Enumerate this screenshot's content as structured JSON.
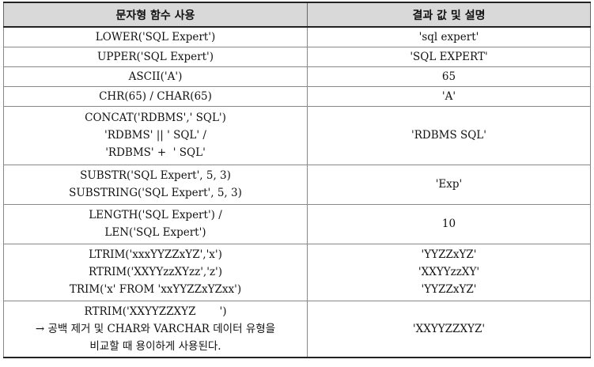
{
  "headers": [
    "문자형 함수 사용",
    "결과 값 및 설명"
  ],
  "rows": [
    {
      "func": [
        "LOWER('SQL Expert')"
      ],
      "result": [
        "'sql expert'"
      ]
    },
    {
      "func": [
        "UPPER('SQL Expert')"
      ],
      "result": [
        "'SQL EXPERT'"
      ]
    },
    {
      "func": [
        "ASCII('A')"
      ],
      "result": [
        "65"
      ]
    },
    {
      "func": [
        "CHR(65) / CHAR(65)"
      ],
      "result": [
        "'A'"
      ]
    },
    {
      "func": [
        "CONCAT('RDBMS',' SQL')",
        "'RDBMS' || ' SQL' /",
        "'RDBMS' +  ' SQL'"
      ],
      "result": [
        "'RDBMS SQL'"
      ]
    },
    {
      "func": [
        "SUBSTR('SQL Expert', 5, 3)",
        "SUBSTRING('SQL Expert', 5, 3)"
      ],
      "result": [
        "'Exp'"
      ]
    },
    {
      "func": [
        "LENGTH('SQL Expert') /",
        "LEN('SQL Expert')"
      ],
      "result": [
        "10"
      ]
    },
    {
      "func": [
        "LTRIM('xxxYYZZxYZ','x')",
        "RTRIM('XXYYzzXYzz','z')",
        "TRIM('x' FROM 'xxYYZZxYZxx')"
      ],
      "result": [
        "'YYZZxYZ'",
        "'XXYYzzXY'",
        "'YYZZxYZ'"
      ]
    },
    {
      "func": [
        "RTRIM('XXYYZZXYZ       ')",
        "→ 공백 제거 및 CHAR와 VARCHAR 데이터 유형을",
        "비교할 때 용이하게 사용된다."
      ],
      "result": [
        "'XXYYZZXYZ'"
      ]
    }
  ]
}
